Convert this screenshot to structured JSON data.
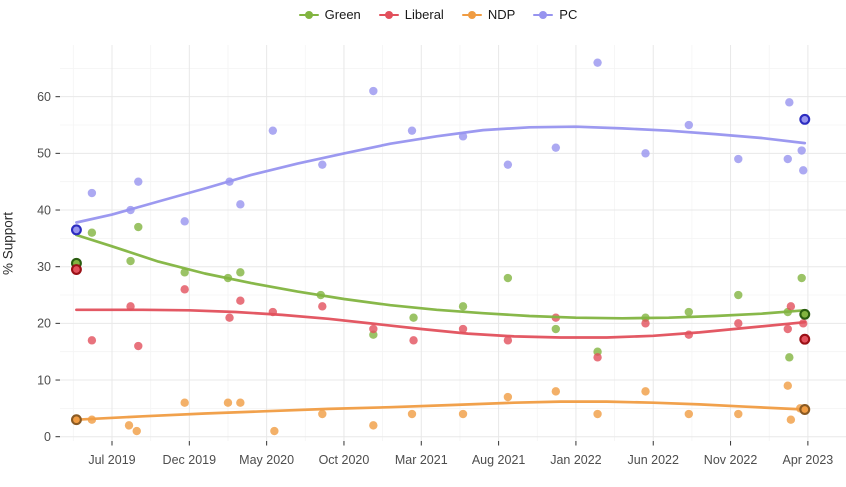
{
  "chart_data": {
    "type": "scatter",
    "title": "",
    "ylabel": "% Support",
    "xlabel": "",
    "grid": true,
    "legend_position": "top",
    "x_unit": "months since Jul 2019",
    "x_ticks": [
      {
        "m": 0,
        "label": "Jul 2019"
      },
      {
        "m": 5,
        "label": "Dec 2019"
      },
      {
        "m": 10,
        "label": "May 2020"
      },
      {
        "m": 15,
        "label": "Oct 2020"
      },
      {
        "m": 20,
        "label": "Mar 2021"
      },
      {
        "m": 25,
        "label": "Aug 2021"
      },
      {
        "m": 30,
        "label": "Jan 2022"
      },
      {
        "m": 35,
        "label": "Jun 2022"
      },
      {
        "m": 40,
        "label": "Nov 2022"
      },
      {
        "m": 45,
        "label": "Apr 2023"
      }
    ],
    "y_ticks": [
      0,
      10,
      20,
      30,
      40,
      50,
      60
    ],
    "ylim": [
      0,
      69
    ],
    "series": [
      {
        "name": "Green",
        "color": "#82b440",
        "edge_color": "#2a5d10",
        "polls": [
          [
            -1.3,
            36
          ],
          [
            1.2,
            31
          ],
          [
            1.7,
            37
          ],
          [
            4.7,
            29
          ],
          [
            7.5,
            28
          ],
          [
            8.3,
            29
          ],
          [
            13.5,
            25
          ],
          [
            16.9,
            18
          ],
          [
            19.5,
            21
          ],
          [
            22.7,
            23
          ],
          [
            25.6,
            28
          ],
          [
            28.7,
            19
          ],
          [
            31.4,
            15
          ],
          [
            34.5,
            21
          ],
          [
            37.3,
            22
          ],
          [
            40.5,
            25
          ],
          [
            43.7,
            22
          ],
          [
            43.8,
            14
          ],
          [
            44.6,
            28
          ]
        ],
        "elections": [
          [
            -2.3,
            30.6
          ],
          [
            44.8,
            21.6
          ]
        ],
        "trend": [
          [
            -2.3,
            35.6
          ],
          [
            0,
            33.6
          ],
          [
            3,
            30.9
          ],
          [
            6,
            28.8
          ],
          [
            9,
            27.1
          ],
          [
            12,
            25.6
          ],
          [
            15,
            24.3
          ],
          [
            18,
            23.2
          ],
          [
            21,
            22.4
          ],
          [
            24,
            21.8
          ],
          [
            27,
            21.3
          ],
          [
            30,
            21.0
          ],
          [
            33,
            20.9
          ],
          [
            36,
            21.0
          ],
          [
            39,
            21.3
          ],
          [
            42,
            21.7
          ],
          [
            44.8,
            22.3
          ]
        ]
      },
      {
        "name": "Liberal",
        "color": "#e2505c",
        "edge_color": "#9a1016",
        "polls": [
          [
            -1.3,
            17
          ],
          [
            1.2,
            23
          ],
          [
            1.7,
            16
          ],
          [
            4.7,
            26
          ],
          [
            7.6,
            21
          ],
          [
            8.3,
            24
          ],
          [
            10.4,
            22
          ],
          [
            13.6,
            23
          ],
          [
            16.9,
            19
          ],
          [
            19.5,
            17
          ],
          [
            22.7,
            19
          ],
          [
            25.6,
            17
          ],
          [
            28.7,
            21
          ],
          [
            31.4,
            14
          ],
          [
            34.5,
            20
          ],
          [
            37.3,
            18
          ],
          [
            40.5,
            20
          ],
          [
            43.7,
            19
          ],
          [
            43.9,
            23
          ],
          [
            44.7,
            20
          ]
        ],
        "elections": [
          [
            -2.3,
            29.5
          ],
          [
            44.8,
            17.2
          ]
        ],
        "trend": [
          [
            -2.3,
            22.4
          ],
          [
            2,
            22.4
          ],
          [
            5,
            22.3
          ],
          [
            8,
            22.0
          ],
          [
            11,
            21.5
          ],
          [
            14,
            20.8
          ],
          [
            17,
            19.9
          ],
          [
            20,
            19.0
          ],
          [
            23,
            18.2
          ],
          [
            26,
            17.7
          ],
          [
            29,
            17.5
          ],
          [
            32,
            17.5
          ],
          [
            35,
            17.8
          ],
          [
            38,
            18.4
          ],
          [
            41,
            19.2
          ],
          [
            44.8,
            20.2
          ]
        ]
      },
      {
        "name": "NDP",
        "color": "#f09c42",
        "edge_color": "#8a5a23",
        "polls": [
          [
            -1.3,
            3
          ],
          [
            1.1,
            2
          ],
          [
            1.6,
            1
          ],
          [
            4.7,
            6
          ],
          [
            7.5,
            6
          ],
          [
            8.3,
            6
          ],
          [
            10.5,
            1
          ],
          [
            13.6,
            4
          ],
          [
            16.9,
            2
          ],
          [
            19.4,
            4
          ],
          [
            22.7,
            4
          ],
          [
            25.6,
            7
          ],
          [
            28.7,
            8
          ],
          [
            31.4,
            4
          ],
          [
            34.5,
            8
          ],
          [
            37.3,
            4
          ],
          [
            40.5,
            4
          ],
          [
            43.7,
            9
          ],
          [
            43.9,
            3
          ],
          [
            44.5,
            5
          ]
        ],
        "elections": [
          [
            -2.3,
            3.0
          ],
          [
            44.8,
            4.8
          ]
        ],
        "trend": [
          [
            -2.3,
            3.0
          ],
          [
            2,
            3.6
          ],
          [
            6,
            4.1
          ],
          [
            10,
            4.5
          ],
          [
            14,
            4.9
          ],
          [
            18,
            5.2
          ],
          [
            22,
            5.6
          ],
          [
            26,
            6.0
          ],
          [
            29,
            6.2
          ],
          [
            32,
            6.2
          ],
          [
            35,
            6.0
          ],
          [
            38,
            5.7
          ],
          [
            41,
            5.3
          ],
          [
            44.8,
            4.8
          ]
        ]
      },
      {
        "name": "PC",
        "color": "#9794ef",
        "edge_color": "#2c2cc0",
        "polls": [
          [
            -1.3,
            43
          ],
          [
            1.2,
            40
          ],
          [
            1.7,
            45
          ],
          [
            4.7,
            38
          ],
          [
            7.6,
            45
          ],
          [
            8.3,
            41
          ],
          [
            10.4,
            54
          ],
          [
            13.6,
            48
          ],
          [
            16.9,
            61
          ],
          [
            19.4,
            54
          ],
          [
            22.7,
            53
          ],
          [
            25.6,
            48
          ],
          [
            28.7,
            51
          ],
          [
            31.4,
            66
          ],
          [
            34.5,
            50
          ],
          [
            37.3,
            55
          ],
          [
            40.5,
            49
          ],
          [
            43.7,
            49
          ],
          [
            43.8,
            59
          ],
          [
            44.6,
            50.5
          ],
          [
            44.7,
            47
          ]
        ],
        "elections": [
          [
            -2.3,
            36.5
          ],
          [
            44.8,
            56.0
          ]
        ],
        "trend": [
          [
            -2.3,
            37.8
          ],
          [
            0,
            39.2
          ],
          [
            3,
            41.5
          ],
          [
            6,
            43.8
          ],
          [
            9,
            46.2
          ],
          [
            12,
            48.2
          ],
          [
            15,
            50.0
          ],
          [
            18,
            51.7
          ],
          [
            21,
            53.0
          ],
          [
            24,
            54.1
          ],
          [
            27,
            54.6
          ],
          [
            30,
            54.7
          ],
          [
            33,
            54.4
          ],
          [
            36,
            54.0
          ],
          [
            39,
            53.4
          ],
          [
            42,
            52.7
          ],
          [
            44.8,
            51.8
          ]
        ]
      }
    ],
    "style": {
      "background": "#ffffff",
      "grid_major": "#e8e8e8",
      "grid_minor": "#f4f4f4",
      "tick_color": "#333333",
      "tick_label_color": "#4d4d4d",
      "point_opacity": 0.8
    }
  }
}
